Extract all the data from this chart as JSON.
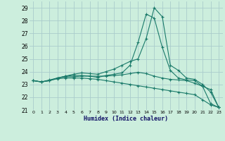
{
  "xlabel": "Humidex (Indice chaleur)",
  "background_color": "#cceedd",
  "grid_color": "#aacccc",
  "line_color": "#1a7a6a",
  "xlim": [
    -0.5,
    23.5
  ],
  "ylim": [
    21,
    29.5
  ],
  "yticks": [
    21,
    22,
    23,
    24,
    25,
    26,
    27,
    28,
    29
  ],
  "xticks": [
    0,
    1,
    2,
    3,
    4,
    5,
    6,
    7,
    8,
    9,
    10,
    11,
    12,
    13,
    14,
    15,
    16,
    17,
    18,
    19,
    20,
    21,
    22,
    23
  ],
  "xtick_labels": [
    "0",
    "1",
    "2",
    "3",
    "4",
    "5",
    "6",
    "7",
    "8",
    "9",
    "10",
    "11",
    "12",
    "13",
    "14",
    "15",
    "16",
    "17",
    "18",
    "19",
    "20",
    "21",
    "22",
    "23"
  ],
  "series": [
    [
      23.3,
      23.2,
      23.3,
      23.5,
      23.6,
      23.6,
      23.65,
      23.65,
      23.65,
      23.65,
      23.7,
      23.75,
      23.85,
      23.95,
      23.85,
      23.65,
      23.5,
      23.4,
      23.35,
      23.3,
      23.1,
      22.85,
      21.5,
      21.2
    ],
    [
      23.3,
      23.2,
      23.3,
      23.5,
      23.65,
      23.7,
      23.7,
      23.65,
      23.55,
      23.7,
      23.8,
      23.9,
      24.5,
      26.3,
      28.5,
      28.2,
      25.9,
      24.1,
      23.5,
      23.35,
      23.3,
      22.85,
      22.6,
      21.2
    ],
    [
      23.3,
      23.2,
      23.35,
      23.5,
      23.65,
      23.8,
      23.9,
      23.85,
      23.8,
      24.0,
      24.2,
      24.5,
      24.8,
      25.0,
      26.6,
      29.0,
      28.3,
      24.5,
      24.1,
      23.5,
      23.4,
      23.0,
      22.4,
      21.2
    ],
    [
      23.3,
      23.2,
      23.3,
      23.45,
      23.5,
      23.5,
      23.5,
      23.45,
      23.4,
      23.3,
      23.2,
      23.1,
      23.0,
      22.9,
      22.8,
      22.7,
      22.6,
      22.5,
      22.4,
      22.3,
      22.2,
      21.8,
      21.4,
      21.2
    ]
  ]
}
